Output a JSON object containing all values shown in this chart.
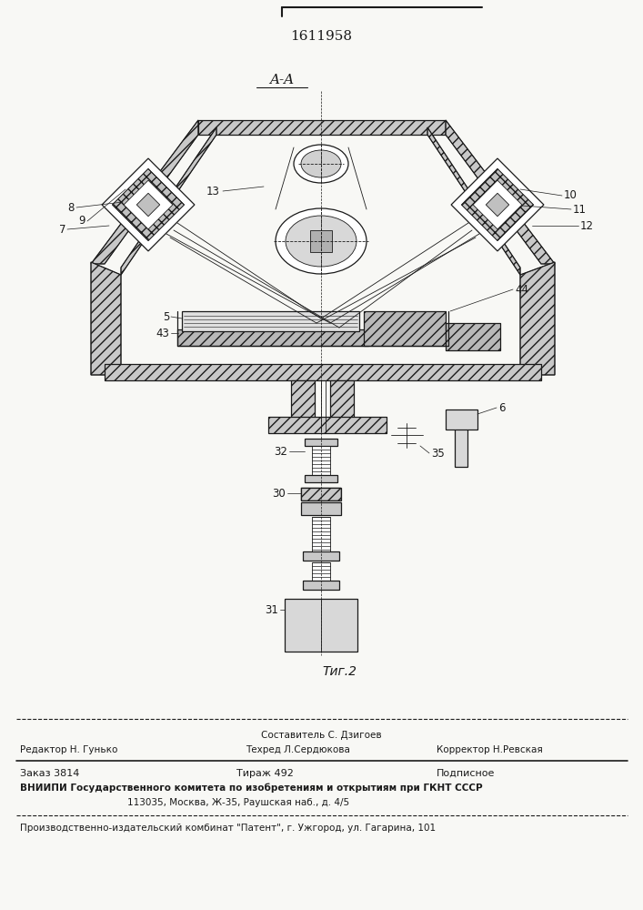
{
  "title_patent": "1611958",
  "section_label": "A-A",
  "figure_label": "Τиг.2",
  "bg_color": "#f8f8f5",
  "line_color": "#1a1a1a",
  "footer": {
    "line1_center": "Составитель С. Дзигоев",
    "line2_left": "Редактор Н. Гунько",
    "line2_mid": "Техред Л.Сердюкова",
    "line2_right": "Корректор Н.Ревская",
    "line3_left": "Заказ 3814",
    "line3_mid": "Тираж 492",
    "line3_right": "Подписное",
    "line4": "ВНИИПИ Государственного комитета по изобретениям и открытиям при ГКНТ СССР",
    "line5": "113035, Москва, Ж-35, Раушская наб., д. 4/5",
    "line6": "Производственно-издательский комбинат \"Патент\", г. Ужгород, ул. Гагарина, 101"
  }
}
